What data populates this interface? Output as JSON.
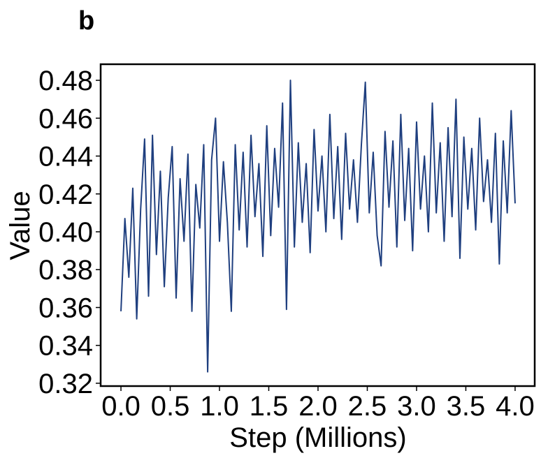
{
  "chart_data": {
    "type": "line",
    "panel_label": "b",
    "xlabel": "Step (Millions)",
    "ylabel": "Value",
    "x": [
      0.0,
      0.04,
      0.08,
      0.12,
      0.16,
      0.2,
      0.24,
      0.28,
      0.32,
      0.36,
      0.4,
      0.44,
      0.48,
      0.52,
      0.56,
      0.6,
      0.64,
      0.68,
      0.72,
      0.76,
      0.8,
      0.84,
      0.88,
      0.92,
      0.96,
      1.0,
      1.04,
      1.08,
      1.12,
      1.16,
      1.2,
      1.24,
      1.28,
      1.32,
      1.36,
      1.4,
      1.44,
      1.48,
      1.52,
      1.56,
      1.6,
      1.64,
      1.68,
      1.72,
      1.76,
      1.8,
      1.84,
      1.88,
      1.92,
      1.96,
      2.0,
      2.04,
      2.08,
      2.12,
      2.16,
      2.2,
      2.24,
      2.28,
      2.32,
      2.36,
      2.4,
      2.44,
      2.48,
      2.52,
      2.56,
      2.6,
      2.64,
      2.68,
      2.72,
      2.76,
      2.8,
      2.84,
      2.88,
      2.92,
      2.96,
      3.0,
      3.04,
      3.08,
      3.12,
      3.16,
      3.2,
      3.24,
      3.28,
      3.32,
      3.36,
      3.4,
      3.44,
      3.48,
      3.52,
      3.56,
      3.6,
      3.64,
      3.68,
      3.72,
      3.76,
      3.8,
      3.84,
      3.88,
      3.92,
      3.96,
      4.0
    ],
    "series": [
      {
        "color": "#1f3f7f",
        "values": [
          0.358,
          0.407,
          0.376,
          0.423,
          0.354,
          0.412,
          0.449,
          0.366,
          0.451,
          0.388,
          0.432,
          0.371,
          0.418,
          0.445,
          0.365,
          0.428,
          0.395,
          0.441,
          0.358,
          0.425,
          0.402,
          0.446,
          0.326,
          0.438,
          0.46,
          0.395,
          0.437,
          0.405,
          0.358,
          0.446,
          0.401,
          0.442,
          0.392,
          0.451,
          0.408,
          0.436,
          0.387,
          0.456,
          0.398,
          0.444,
          0.413,
          0.468,
          0.359,
          0.48,
          0.392,
          0.447,
          0.405,
          0.436,
          0.389,
          0.454,
          0.411,
          0.44,
          0.4,
          0.462,
          0.407,
          0.445,
          0.396,
          0.452,
          0.412,
          0.438,
          0.405,
          0.446,
          0.479,
          0.41,
          0.442,
          0.398,
          0.382,
          0.453,
          0.413,
          0.448,
          0.392,
          0.462,
          0.406,
          0.444,
          0.39,
          0.458,
          0.412,
          0.44,
          0.4,
          0.468,
          0.41,
          0.447,
          0.395,
          0.455,
          0.408,
          0.47,
          0.386,
          0.45,
          0.412,
          0.444,
          0.401,
          0.46,
          0.416,
          0.438,
          0.405,
          0.452,
          0.383,
          0.448,
          0.41,
          0.464,
          0.415
        ]
      }
    ],
    "xlim": [
      -0.206,
      4.199
    ],
    "ylim": [
      0.3185,
      0.4885
    ],
    "xticks": [
      {
        "value": 0,
        "label": "0.0"
      },
      0.5,
      {
        "value": 1,
        "label": "1.0"
      },
      1.5,
      {
        "value": 2,
        "label": "2.0"
      },
      2.5,
      {
        "value": 3,
        "label": "3.0"
      },
      3.5,
      {
        "value": 4,
        "label": "4.0"
      }
    ],
    "yticks": [
      0.32,
      0.34,
      0.36,
      0.38,
      {
        "value": 0.4,
        "label": "0.40"
      },
      0.42,
      0.44,
      0.46,
      0.48
    ]
  }
}
